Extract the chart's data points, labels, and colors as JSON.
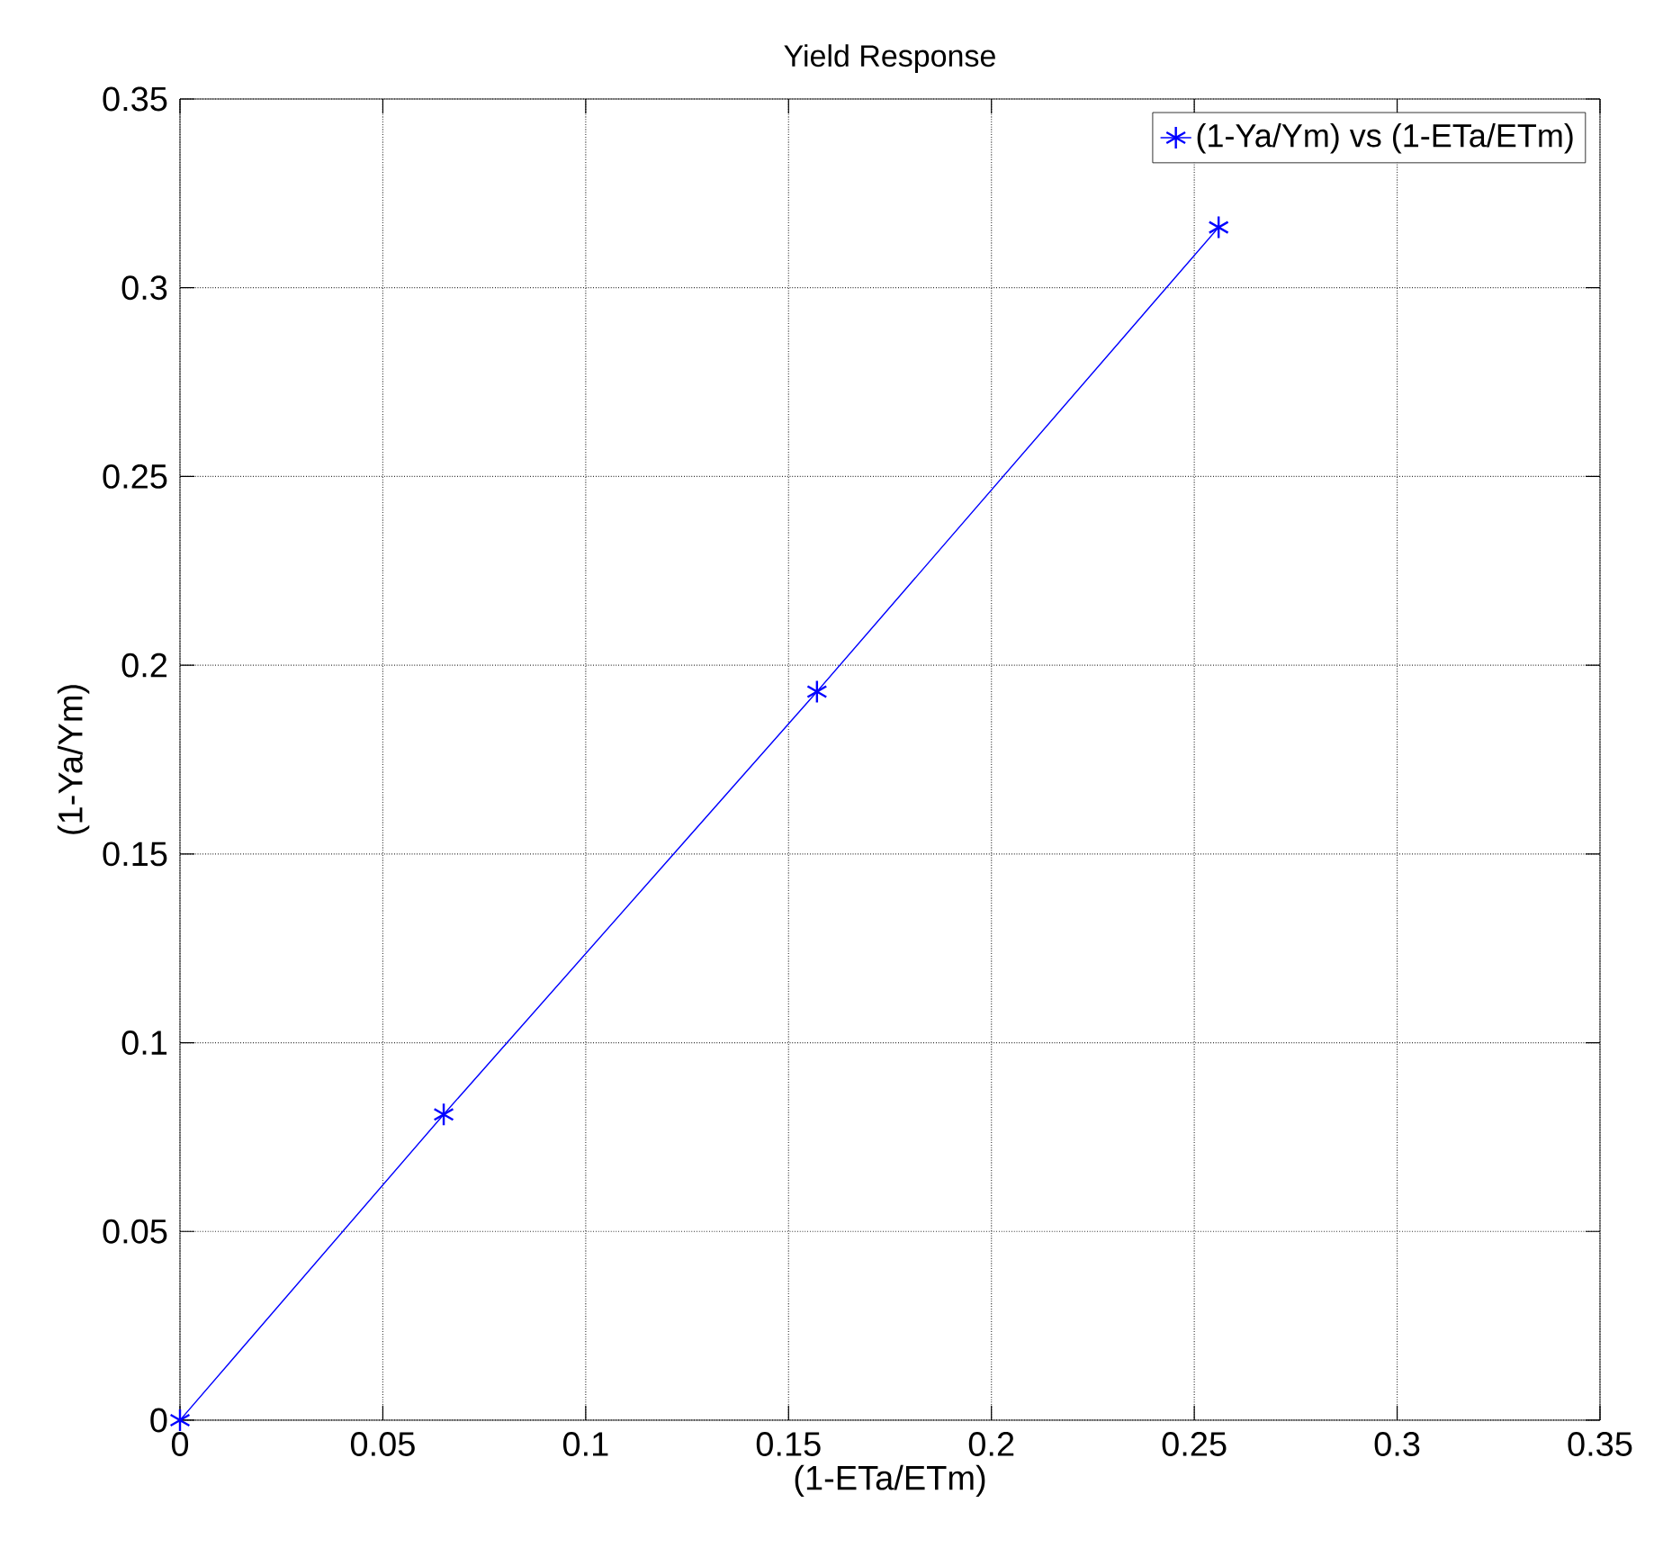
{
  "chart_data": {
    "type": "line",
    "title": "Yield Response",
    "xlabel": "(1-ETa/ETm)",
    "ylabel": "(1-Ya/Ym)",
    "series": [
      {
        "name": "(1-Ya/Ym) vs (1-ETa/ETm)",
        "color": "#0000ff",
        "x": [
          0,
          0.065,
          0.157,
          0.256
        ],
        "values": [
          0,
          0.081,
          0.193,
          0.316
        ]
      }
    ],
    "xlim": [
      0,
      0.35
    ],
    "ylim": [
      0,
      0.35
    ],
    "xticks": [
      0,
      0.05,
      0.1,
      0.15,
      0.2,
      0.25,
      0.3,
      0.35
    ],
    "yticks": [
      0,
      0.05,
      0.1,
      0.15,
      0.2,
      0.25,
      0.3,
      0.35
    ],
    "grid": true,
    "legend": "top right",
    "marker": "cross",
    "line_style": "solid"
  }
}
